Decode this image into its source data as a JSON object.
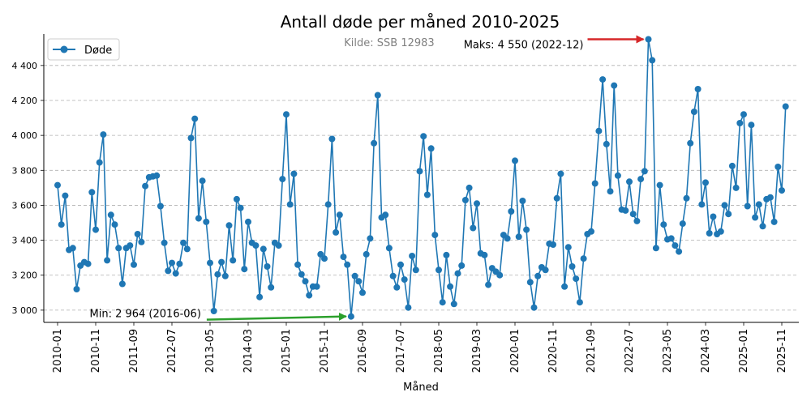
{
  "chart_data": {
    "type": "line",
    "title": "Antall døde per måned 2010-2025",
    "source_note": "Kilde: SSB 12983",
    "xlabel": "Måned",
    "ylabel": "",
    "ylim": [
      2930,
      4580
    ],
    "yticks": [
      3000,
      3200,
      3400,
      3600,
      3800,
      4000,
      4200,
      4400
    ],
    "ytick_labels": [
      "3 000",
      "3 200",
      "3 400",
      "3 600",
      "3 800",
      "4 000",
      "4 200",
      "4 400"
    ],
    "xticks": [
      "2010-01",
      "2010-11",
      "2011-09",
      "2012-07",
      "2013-05",
      "2014-03",
      "2015-01",
      "2015-11",
      "2016-09",
      "2017-07",
      "2018-05",
      "2019-03",
      "2020-01",
      "2020-11",
      "2021-09",
      "2022-07",
      "2023-05",
      "2024-03",
      "2025-01",
      "2025-11"
    ],
    "grid": "y",
    "legend": "top-left",
    "series": [
      {
        "name": "Døde",
        "color": "#1f77b4",
        "x": [
          "2010-01",
          "2010-02",
          "2010-03",
          "2010-04",
          "2010-05",
          "2010-06",
          "2010-07",
          "2010-08",
          "2010-09",
          "2010-10",
          "2010-11",
          "2010-12",
          "2011-01",
          "2011-02",
          "2011-03",
          "2011-04",
          "2011-05",
          "2011-06",
          "2011-07",
          "2011-08",
          "2011-09",
          "2011-10",
          "2011-11",
          "2011-12",
          "2012-01",
          "2012-02",
          "2012-03",
          "2012-04",
          "2012-05",
          "2012-06",
          "2012-07",
          "2012-08",
          "2012-09",
          "2012-10",
          "2012-11",
          "2012-12",
          "2013-01",
          "2013-02",
          "2013-03",
          "2013-04",
          "2013-05",
          "2013-06",
          "2013-07",
          "2013-08",
          "2013-09",
          "2013-10",
          "2013-11",
          "2013-12",
          "2014-01",
          "2014-02",
          "2014-03",
          "2014-04",
          "2014-05",
          "2014-06",
          "2014-07",
          "2014-08",
          "2014-09",
          "2014-10",
          "2014-11",
          "2014-12",
          "2015-01",
          "2015-02",
          "2015-03",
          "2015-04",
          "2015-05",
          "2015-06",
          "2015-07",
          "2015-08",
          "2015-09",
          "2015-10",
          "2015-11",
          "2015-12",
          "2016-01",
          "2016-02",
          "2016-03",
          "2016-04",
          "2016-05",
          "2016-06",
          "2016-07",
          "2016-08",
          "2016-09",
          "2016-10",
          "2016-11",
          "2016-12",
          "2017-01",
          "2017-02",
          "2017-03",
          "2017-04",
          "2017-05",
          "2017-06",
          "2017-07",
          "2017-08",
          "2017-09",
          "2017-10",
          "2017-11",
          "2017-12",
          "2018-01",
          "2018-02",
          "2018-03",
          "2018-04",
          "2018-05",
          "2018-06",
          "2018-07",
          "2018-08",
          "2018-09",
          "2018-10",
          "2018-11",
          "2018-12",
          "2019-01",
          "2019-02",
          "2019-03",
          "2019-04",
          "2019-05",
          "2019-06",
          "2019-07",
          "2019-08",
          "2019-09",
          "2019-10",
          "2019-11",
          "2019-12",
          "2020-01",
          "2020-02",
          "2020-03",
          "2020-04",
          "2020-05",
          "2020-06",
          "2020-07",
          "2020-08",
          "2020-09",
          "2020-10",
          "2020-11",
          "2020-12",
          "2021-01",
          "2021-02",
          "2021-03",
          "2021-04",
          "2021-05",
          "2021-06",
          "2021-07",
          "2021-08",
          "2021-09",
          "2021-10",
          "2021-11",
          "2021-12",
          "2022-01",
          "2022-02",
          "2022-03",
          "2022-04",
          "2022-05",
          "2022-06",
          "2022-07",
          "2022-08",
          "2022-09",
          "2022-10",
          "2022-11",
          "2022-12",
          "2023-01",
          "2023-02",
          "2023-03",
          "2023-04",
          "2023-05",
          "2023-06",
          "2023-07",
          "2023-08",
          "2023-09",
          "2023-10",
          "2023-11",
          "2023-12",
          "2024-01",
          "2024-02",
          "2024-03",
          "2024-04",
          "2024-05",
          "2024-06",
          "2024-07",
          "2024-08",
          "2024-09",
          "2024-10",
          "2024-11",
          "2024-12",
          "2025-01",
          "2025-02",
          "2025-03",
          "2025-04",
          "2025-05",
          "2025-06",
          "2025-07",
          "2025-08",
          "2025-09",
          "2025-10",
          "2025-11",
          "2025-12"
        ],
        "values": [
          3715,
          3490,
          3655,
          3345,
          3355,
          3120,
          3255,
          3275,
          3265,
          3675,
          3460,
          3845,
          4005,
          3285,
          3545,
          3490,
          3355,
          3150,
          3355,
          3370,
          3260,
          3435,
          3390,
          3710,
          3760,
          3765,
          3770,
          3595,
          3385,
          3225,
          3270,
          3210,
          3265,
          3385,
          3350,
          3985,
          4095,
          3525,
          3740,
          3505,
          3270,
          2995,
          3205,
          3275,
          3195,
          3485,
          3285,
          3635,
          3585,
          3235,
          3505,
          3385,
          3370,
          3075,
          3350,
          3250,
          3130,
          3385,
          3370,
          3750,
          4120,
          3605,
          3780,
          3260,
          3205,
          3165,
          3085,
          3135,
          3135,
          3320,
          3295,
          3605,
          3980,
          3445,
          3545,
          3305,
          3260,
          2964,
          3195,
          3165,
          3100,
          3320,
          3410,
          3955,
          4230,
          3530,
          3545,
          3355,
          3195,
          3130,
          3260,
          3175,
          3015,
          3310,
          3230,
          3795,
          3995,
          3660,
          3925,
          3430,
          3230,
          3045,
          3315,
          3135,
          3035,
          3210,
          3255,
          3630,
          3700,
          3470,
          3610,
          3325,
          3315,
          3145,
          3240,
          3220,
          3200,
          3430,
          3410,
          3565,
          3855,
          3420,
          3625,
          3460,
          3160,
          3015,
          3195,
          3245,
          3230,
          3380,
          3375,
          3640,
          3780,
          3135,
          3360,
          3250,
          3180,
          3045,
          3295,
          3435,
          3450,
          3725,
          4025,
          4320,
          3950,
          3680,
          4285,
          3770,
          3575,
          3570,
          3735,
          3550,
          3510,
          3750,
          3795,
          4550,
          4430,
          3355,
          3715,
          3490,
          3405,
          3410,
          3370,
          3335,
          3495,
          3640,
          3955,
          4135,
          4265,
          3605,
          3730,
          3440,
          3535,
          3435,
          3450,
          3600,
          3550,
          3825,
          3700,
          4070,
          4120,
          3595,
          4060,
          3530,
          3605,
          3480,
          3635,
          3645,
          3505,
          3820,
          3685,
          4165
        ]
      }
    ],
    "annotations": [
      {
        "text": "Maks: 4 550 (2022-12)",
        "point": "2022-12",
        "value": 4550,
        "arrow_color": "#d62728"
      },
      {
        "text": "Min: 2 964 (2016-06)",
        "point": "2016-06",
        "value": 2964,
        "arrow_color": "#2ca02c"
      }
    ]
  }
}
